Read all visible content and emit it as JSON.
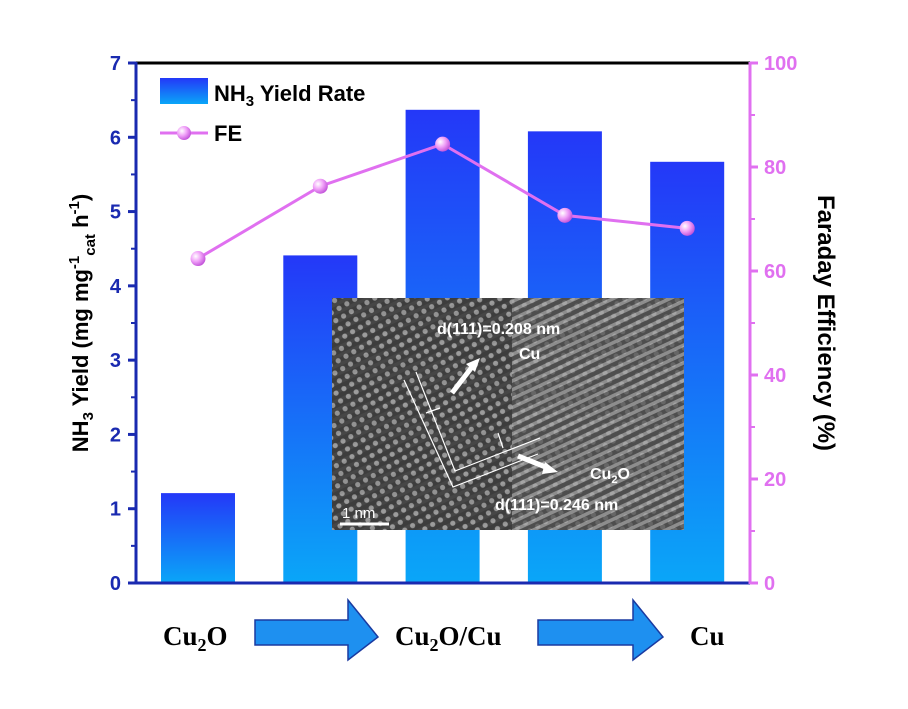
{
  "chart_data": {
    "type": "bar+line",
    "categories": [
      "Cu2O",
      "",
      "Cu2O/Cu",
      "",
      "Cu"
    ],
    "series": [
      {
        "name": "NH3 Yield Rate",
        "type": "bar",
        "axis": "left",
        "values": [
          1.21,
          4.41,
          6.37,
          6.08,
          5.67
        ]
      },
      {
        "name": "FE",
        "type": "line",
        "axis": "right",
        "values": [
          62.4,
          76.3,
          84.4,
          70.7,
          68.2
        ]
      }
    ],
    "ylabel_left": "NH3 Yield (mg mg-1cat h-1)",
    "ylabel_right": "Faraday Efficiency (%)",
    "ylim_left": [
      0,
      7
    ],
    "ylim_right": [
      0,
      100
    ],
    "yticks_left": [
      "0",
      "1",
      "2",
      "3",
      "4",
      "5",
      "6",
      "7"
    ],
    "yticks_right": [
      "0",
      "20",
      "40",
      "60",
      "80",
      "100"
    ],
    "legend": {
      "placement": "top-left",
      "entries": [
        "NH3 Yield Rate",
        "FE"
      ]
    },
    "colors": {
      "bar_top": "#2438f8",
      "bar_bottom": "#0aa6f8",
      "line": "#e070f0",
      "left_axis": "#1a2ab0",
      "right_axis": "#e070f0"
    },
    "grid": false,
    "x_sequence": {
      "labels": [
        "Cu2O",
        "Cu2O/Cu",
        "Cu"
      ],
      "arrow_color": "#1e90f0"
    },
    "inset": {
      "label_top": "d(111)=0.208 nm",
      "phase_top": "Cu",
      "phase_bottom": "Cu2O",
      "label_bottom": "d(111)=0.246 nm",
      "scale_bar": "1 nm"
    }
  }
}
